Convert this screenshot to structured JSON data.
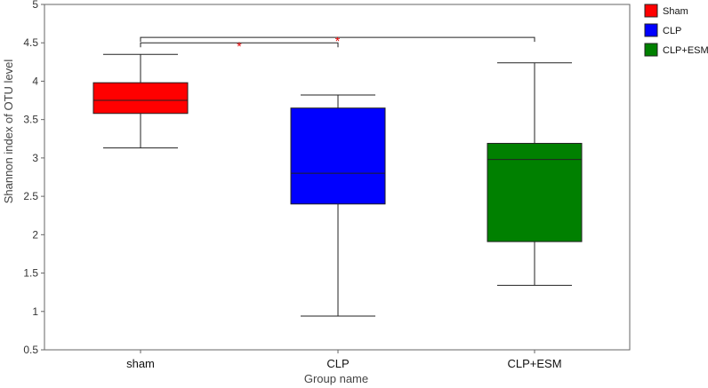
{
  "chart_data": {
    "type": "boxplot",
    "xlabel": "Group name",
    "ylabel": "Shannon index of OTU level",
    "ylim": [
      0.5,
      5
    ],
    "yticks": [
      "0.5",
      "1",
      "1.5",
      "2",
      "2.5",
      "3",
      "3.5",
      "4",
      "4.5",
      "5"
    ],
    "grid": false,
    "legend_position": "right",
    "categories": [
      "sham",
      "CLP",
      "CLP+ESM"
    ],
    "series": [
      {
        "name": "Sham",
        "color": "#ff0000",
        "min": 3.13,
        "q1": 3.58,
        "median": 3.75,
        "q3": 3.98,
        "max": 4.35
      },
      {
        "name": "CLP",
        "color": "#0000ff",
        "min": 0.94,
        "q1": 2.4,
        "median": 2.8,
        "q3": 3.65,
        "max": 3.82
      },
      {
        "name": "CLP+ESM",
        "color": "#008000",
        "min": 1.34,
        "q1": 1.91,
        "median": 2.98,
        "q3": 3.19,
        "max": 4.24
      }
    ],
    "significance": [
      {
        "from": "sham",
        "to": "CLP",
        "label": "*",
        "level": 4.5
      },
      {
        "from": "sham",
        "to": "CLP+ESM",
        "label": "*",
        "level": 4.57
      }
    ]
  }
}
